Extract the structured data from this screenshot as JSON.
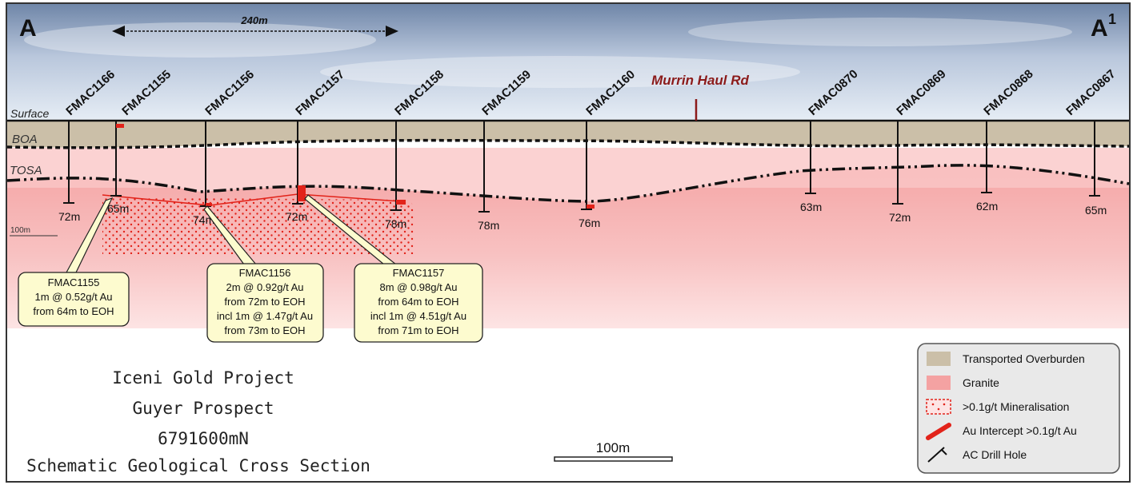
{
  "section_ends": {
    "left": "A",
    "right": "A",
    "right_superscript": "1"
  },
  "scale_top": {
    "label": "240m"
  },
  "surface_label": "Surface",
  "layers": {
    "boa": "BOA",
    "tosa": "TOSA"
  },
  "depth_marker": "100m",
  "road_label": "Murrin Haul Rd",
  "holes": [
    {
      "id": "FMAC1166",
      "depth": "72m"
    },
    {
      "id": "FMAC1155",
      "depth": "65m"
    },
    {
      "id": "FMAC1156",
      "depth": "74m"
    },
    {
      "id": "FMAC1157",
      "depth": "72m"
    },
    {
      "id": "FMAC1158",
      "depth": "78m"
    },
    {
      "id": "FMAC1159",
      "depth": "78m"
    },
    {
      "id": "FMAC1160",
      "depth": "76m"
    },
    {
      "id": "FMAC0870",
      "depth": "63m"
    },
    {
      "id": "FMAC0869",
      "depth": "72m"
    },
    {
      "id": "FMAC0868",
      "depth": "62m"
    },
    {
      "id": "FMAC0867",
      "depth": "65m"
    }
  ],
  "callouts": [
    {
      "lines": [
        "FMAC1155",
        "1m @ 0.52g/t Au",
        "from 64m to EOH"
      ]
    },
    {
      "lines": [
        "FMAC1156",
        "2m @ 0.92g/t Au",
        "from 72m to EOH",
        "incl 1m @ 1.47g/t Au",
        "from 73m to EOH"
      ]
    },
    {
      "lines": [
        "FMAC1157",
        "8m @ 0.98g/t Au",
        "from 64m to EOH",
        "incl 1m @ 4.51g/t Au",
        "from 71m to EOH"
      ]
    }
  ],
  "project_title": {
    "line1": "Iceni Gold Project",
    "line2": "Guyer Prospect",
    "line3": "6791600mN",
    "line4": "Schematic Geological Cross Section"
  },
  "scale_bottom": {
    "label": "100m"
  },
  "legend": {
    "items": [
      {
        "label": "Transported Overburden",
        "icon": "overburden-swatch"
      },
      {
        "label": "Granite",
        "icon": "granite-swatch"
      },
      {
        "label": ">0.1g/t Mineralisation",
        "icon": "mineralisation-swatch"
      },
      {
        "label": "Au Intercept >0.1g/t Au",
        "icon": "intercept-swatch"
      },
      {
        "label": "AC Drill Hole",
        "icon": "drill-hole-icon"
      }
    ]
  },
  "colors": {
    "overburden": "#cbbfa8",
    "granite_light": "#f8c6c6",
    "granite": "#f4a2a2",
    "intercept": "#e2231a",
    "road": "#8b1a1a",
    "callout_bg": "#fdfbcf"
  }
}
